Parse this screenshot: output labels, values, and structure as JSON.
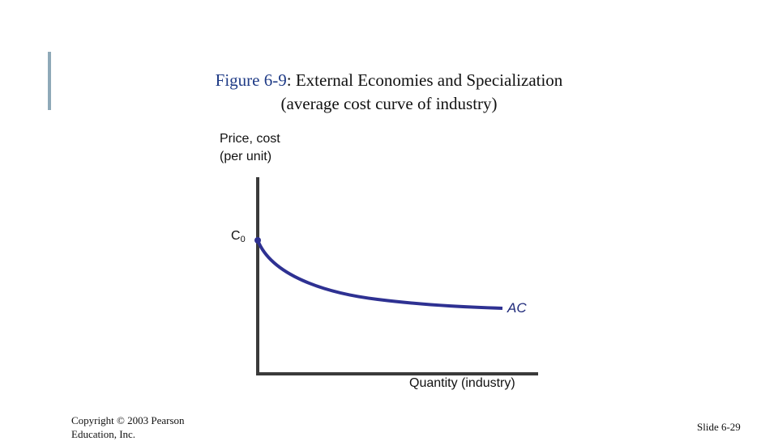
{
  "title": {
    "figure_label": "Figure 6-9",
    "line1_rest": ": External Economies and Specialization",
    "line2": "(average cost curve of industry)"
  },
  "axes": {
    "y_label_line1": "Price, cost",
    "y_label_line2": "(per unit)",
    "x_label": "Quantity (industry)"
  },
  "curve": {
    "start_label_main": "C",
    "start_label_sub": "0",
    "curve_label": "AC"
  },
  "footer": {
    "copyright": "Copyright © 2003 Pearson Education, Inc.",
    "slide_number": "Slide 6-29"
  },
  "colors": {
    "axis": "#3a3a3a",
    "curve": "#2e3192",
    "accent_bar": "#8fa9b8",
    "figure_label": "#1f3b86"
  }
}
